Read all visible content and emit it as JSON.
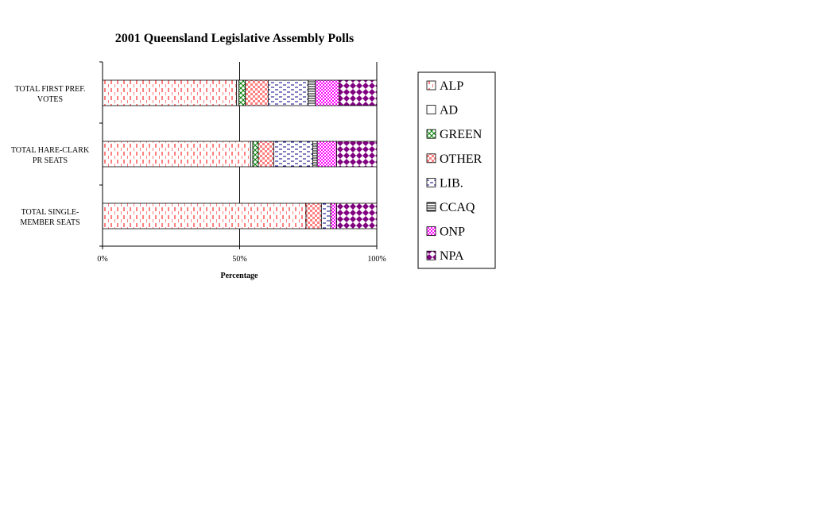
{
  "chart_data": {
    "type": "bar",
    "orientation": "horizontal",
    "stacked": "percent",
    "title": "2001 Queensland Legislative Assembly Polls",
    "xlabel": "Percentage",
    "ylabel": "",
    "xlim": [
      0,
      100
    ],
    "x_ticks": [
      "0%",
      "50%",
      "100%"
    ],
    "categories": [
      [
        "TOTAL FIRST PREF.",
        "VOTES"
      ],
      [
        "TOTAL HARE-CLARK",
        "PR SEATS"
      ],
      [
        "TOTAL SINGLE-",
        "MEMBER SEATS"
      ]
    ],
    "series": [
      {
        "name": "ALP",
        "color": "#ff0000",
        "pattern": "dashes-vertical",
        "values": [
          48.9,
          54.0,
          74.2
        ]
      },
      {
        "name": "AD",
        "color": "#000080",
        "pattern": "plain",
        "values": [
          0.8,
          0.8,
          0.0
        ]
      },
      {
        "name": "GREEN",
        "color": "#008000",
        "pattern": "crosshatch",
        "values": [
          2.4,
          2.0,
          0.0
        ]
      },
      {
        "name": "OTHER",
        "color": "#ff6666",
        "pattern": "checker",
        "values": [
          8.3,
          5.6,
          5.6
        ]
      },
      {
        "name": "LIB.",
        "color": "#000080",
        "pattern": "dashes-horizontal",
        "values": [
          14.6,
          14.3,
          3.4
        ]
      },
      {
        "name": "CCAQ",
        "color": "#000000",
        "pattern": "horizontal-lines",
        "values": [
          2.6,
          1.6,
          0.0
        ]
      },
      {
        "name": "ONP",
        "color": "#ff00ff",
        "pattern": "dots",
        "values": [
          8.7,
          7.1,
          2.2
        ]
      },
      {
        "name": "NPA",
        "color": "#800080",
        "pattern": "diamonds",
        "values": [
          13.7,
          14.6,
          14.6
        ]
      }
    ],
    "grid": false,
    "legend_placement": "right"
  }
}
